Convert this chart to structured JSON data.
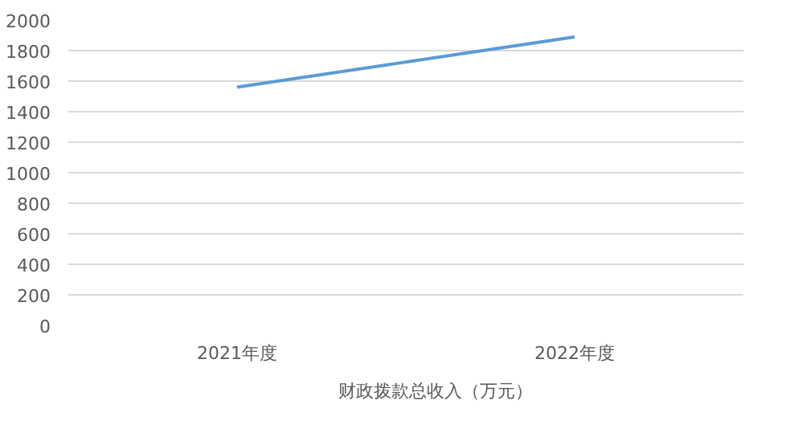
{
  "chart_data": {
    "type": "line",
    "categories": [
      "2021年度",
      "2022年度"
    ],
    "series": [
      {
        "name": "财政拨款总收入（万元）",
        "color": "#5b9bd5",
        "values": [
          1560,
          1890
        ]
      }
    ],
    "ylim": [
      0,
      2000
    ],
    "yticks": [
      0,
      200,
      400,
      600,
      800,
      1000,
      1200,
      1400,
      1600,
      1800,
      2000
    ],
    "grid": "y",
    "legend": "bottom",
    "marker": "none",
    "line_style": "solid"
  }
}
